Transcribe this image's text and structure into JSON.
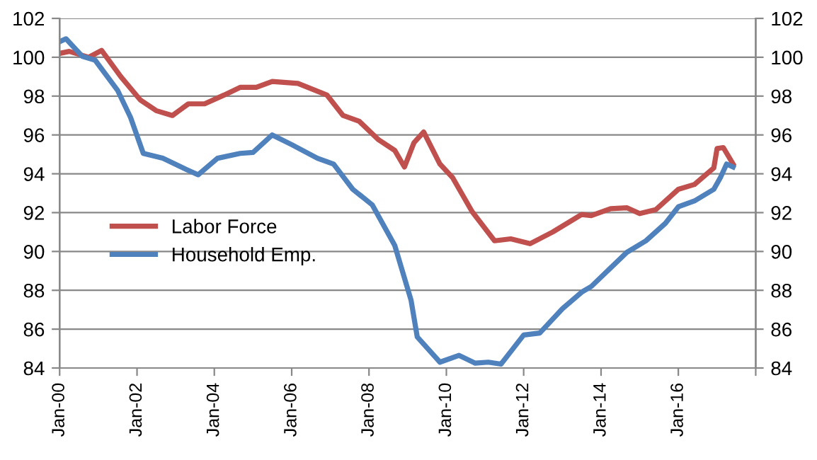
{
  "chart_data": {
    "type": "line",
    "xlim": [
      "2000-01",
      "2018-01"
    ],
    "xticks": [
      {
        "value": "2000-01",
        "label": "Jan-00"
      },
      {
        "value": "2002-01",
        "label": "Jan-02"
      },
      {
        "value": "2004-01",
        "label": "Jan-04"
      },
      {
        "value": "2006-01",
        "label": "Jan-06"
      },
      {
        "value": "2008-01",
        "label": "Jan-08"
      },
      {
        "value": "2010-01",
        "label": "Jan-10"
      },
      {
        "value": "2012-01",
        "label": "Jan-12"
      },
      {
        "value": "2014-01",
        "label": "Jan-14"
      },
      {
        "value": "2016-01",
        "label": "Jan-16"
      },
      {
        "value": "2018-01",
        "label": null
      }
    ],
    "ylim": [
      84,
      102
    ],
    "yticks": [
      84,
      86,
      88,
      90,
      92,
      94,
      96,
      98,
      100,
      102
    ],
    "y2lim": [
      84,
      102
    ],
    "y2ticks": [
      84,
      86,
      88,
      90,
      92,
      94,
      96,
      98,
      100,
      102
    ],
    "grid": "y",
    "legend": "center left",
    "marker": "none",
    "line_style": "solid",
    "series": [
      {
        "name": "Labor Force",
        "color": "#c0504d",
        "x": [
          "2000-01",
          "2000-04",
          "2000-10",
          "2001-02",
          "2001-08",
          "2002-02",
          "2002-07",
          "2002-12",
          "2003-05",
          "2003-10",
          "2004-04",
          "2004-09",
          "2005-02",
          "2005-07",
          "2006-03",
          "2006-12",
          "2007-05",
          "2007-10",
          "2008-04",
          "2008-09",
          "2008-12",
          "2009-03",
          "2009-06",
          "2009-11",
          "2010-03",
          "2010-09",
          "2011-04",
          "2011-09",
          "2012-03",
          "2012-10",
          "2013-07",
          "2013-10",
          "2014-04",
          "2014-09",
          "2015-01",
          "2015-06",
          "2016-01",
          "2016-06",
          "2016-12",
          "2017-01",
          "2017-03",
          "2017-06"
        ],
        "values": [
          100.2,
          100.3,
          100.0,
          100.35,
          99.0,
          97.8,
          97.25,
          97.0,
          97.6,
          97.6,
          98.05,
          98.45,
          98.45,
          98.75,
          98.65,
          98.05,
          97.0,
          96.7,
          95.75,
          95.2,
          94.35,
          95.6,
          96.15,
          94.5,
          93.8,
          92.05,
          90.55,
          90.65,
          90.4,
          91.0,
          91.9,
          91.85,
          92.2,
          92.25,
          91.95,
          92.15,
          93.2,
          93.45,
          94.3,
          95.3,
          95.35,
          94.5
        ]
      },
      {
        "name": "Household Emp.",
        "color": "#4f81bd",
        "x": [
          "2000-01",
          "2000-03",
          "2000-08",
          "2000-12",
          "2001-07",
          "2001-11",
          "2002-03",
          "2002-09",
          "2003-04",
          "2003-08",
          "2004-02",
          "2004-09",
          "2005-01",
          "2005-07",
          "2006-01",
          "2006-09",
          "2007-02",
          "2007-08",
          "2008-02",
          "2008-09",
          "2009-02",
          "2009-04",
          "2009-11",
          "2010-05",
          "2010-10",
          "2011-02",
          "2011-06",
          "2012-01",
          "2012-06",
          "2013-01",
          "2013-07",
          "2013-10",
          "2014-04",
          "2014-09",
          "2015-03",
          "2015-09",
          "2016-01",
          "2016-06",
          "2016-12",
          "2017-02",
          "2017-04",
          "2017-06"
        ],
        "values": [
          100.8,
          100.95,
          100.05,
          99.85,
          98.3,
          96.9,
          95.05,
          94.8,
          94.25,
          93.95,
          94.8,
          95.05,
          95.1,
          96.0,
          95.5,
          94.8,
          94.5,
          93.2,
          92.4,
          90.3,
          87.5,
          85.6,
          84.3,
          84.65,
          84.25,
          84.3,
          84.2,
          85.7,
          85.8,
          87.05,
          87.9,
          88.2,
          89.15,
          89.95,
          90.55,
          91.45,
          92.3,
          92.6,
          93.2,
          93.8,
          94.5,
          94.35
        ]
      }
    ]
  }
}
